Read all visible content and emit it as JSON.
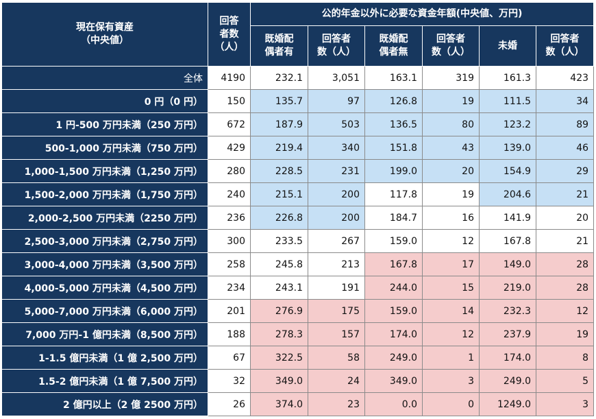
{
  "header": {
    "asset_label": "現在保有資産\n（中央値）",
    "count_label": "回答\n者数\n（人）",
    "group_label": "公的年金以外に必要な資金年額(中央値、万円)",
    "columns": [
      "既婚配\n偶者有",
      "回答者\n数（人）",
      "既婚配\n偶者無",
      "回答者\n数（人）",
      "未婚",
      "回答者\n数（人）"
    ]
  },
  "table": {
    "rows": [
      {
        "label": "全体",
        "count": "4190",
        "values": [
          "232.1",
          "3,051",
          "163.1",
          "319",
          "161.3",
          "423"
        ],
        "shading": [
          "#ffffff",
          "#ffffff",
          "#ffffff",
          "#ffffff",
          "#ffffff",
          "#ffffff"
        ]
      },
      {
        "label": "0 円（0 円）",
        "count": "150",
        "values": [
          "135.7",
          "97",
          "126.8",
          "19",
          "111.5",
          "34"
        ],
        "shading": [
          "#c6e0f5",
          "#c6e0f5",
          "#c6e0f5",
          "#c6e0f5",
          "#c6e0f5",
          "#c6e0f5"
        ]
      },
      {
        "label": "1 円-500 万円未満（250 万円）",
        "count": "672",
        "values": [
          "187.9",
          "503",
          "136.5",
          "80",
          "123.2",
          "89"
        ],
        "shading": [
          "#c6e0f5",
          "#c6e0f5",
          "#c6e0f5",
          "#c6e0f5",
          "#c6e0f5",
          "#c6e0f5"
        ]
      },
      {
        "label": "500-1,000 万円未満（750 万円）",
        "count": "429",
        "values": [
          "219.4",
          "340",
          "151.8",
          "43",
          "139.0",
          "46"
        ],
        "shading": [
          "#c6e0f5",
          "#c6e0f5",
          "#c6e0f5",
          "#c6e0f5",
          "#c6e0f5",
          "#c6e0f5"
        ]
      },
      {
        "label": "1,000-1,500 万円未満（1,250 万円）",
        "count": "280",
        "values": [
          "228.5",
          "231",
          "199.0",
          "20",
          "154.9",
          "29"
        ],
        "shading": [
          "#c6e0f5",
          "#c6e0f5",
          "#c6e0f5",
          "#c6e0f5",
          "#c6e0f5",
          "#c6e0f5"
        ]
      },
      {
        "label": "1,500-2,000 万円未満（1,750 万円）",
        "count": "240",
        "values": [
          "215.1",
          "200",
          "117.8",
          "19",
          "204.6",
          "21"
        ],
        "shading": [
          "#c6e0f5",
          "#c6e0f5",
          "#ffffff",
          "#ffffff",
          "#c6e0f5",
          "#c6e0f5"
        ]
      },
      {
        "label": "2,000-2,500 万円未満（2250 万円）",
        "count": "236",
        "values": [
          "226.8",
          "200",
          "184.7",
          "16",
          "141.9",
          "20"
        ],
        "shading": [
          "#c6e0f5",
          "#c6e0f5",
          "#ffffff",
          "#ffffff",
          "#ffffff",
          "#ffffff"
        ]
      },
      {
        "label": "2,500-3,000 万円未満（2,750 万円）",
        "count": "300",
        "values": [
          "233.5",
          "267",
          "159.0",
          "12",
          "167.8",
          "21"
        ],
        "shading": [
          "#ffffff",
          "#ffffff",
          "#ffffff",
          "#ffffff",
          "#ffffff",
          "#ffffff"
        ]
      },
      {
        "label": "3,000-4,000 万円未満（3,500 万円）",
        "count": "258",
        "values": [
          "245.8",
          "213",
          "167.8",
          "17",
          "149.0",
          "28"
        ],
        "shading": [
          "#ffffff",
          "#ffffff",
          "#f5cccc",
          "#f5cccc",
          "#f5cccc",
          "#f5cccc"
        ]
      },
      {
        "label": "4,000-5,000 万円未満（4,500 万円）",
        "count": "234",
        "values": [
          "243.1",
          "191",
          "244.0",
          "15",
          "219.0",
          "28"
        ],
        "shading": [
          "#ffffff",
          "#ffffff",
          "#f5cccc",
          "#f5cccc",
          "#f5cccc",
          "#f5cccc"
        ]
      },
      {
        "label": "5,000-7,000 万円未満（6,000 万円）",
        "count": "201",
        "values": [
          "276.9",
          "175",
          "159.0",
          "14",
          "232.3",
          "12"
        ],
        "shading": [
          "#f5cccc",
          "#f5cccc",
          "#f5cccc",
          "#f5cccc",
          "#f5cccc",
          "#f5cccc"
        ]
      },
      {
        "label": "7,000 万円-1 億円未満（8,500 万円）",
        "count": "188",
        "values": [
          "278.3",
          "157",
          "174.0",
          "12",
          "237.9",
          "19"
        ],
        "shading": [
          "#f5cccc",
          "#f5cccc",
          "#f5cccc",
          "#f5cccc",
          "#f5cccc",
          "#f5cccc"
        ]
      },
      {
        "label": "1-1.5 億円未満（1 億 2,500 万円）",
        "count": "67",
        "values": [
          "322.5",
          "58",
          "249.0",
          "1",
          "174.0",
          "8"
        ],
        "shading": [
          "#f5cccc",
          "#f5cccc",
          "#f5cccc",
          "#f5cccc",
          "#f5cccc",
          "#f5cccc"
        ]
      },
      {
        "label": "1.5-2 億円未満（1 億 7,500 万円）",
        "count": "32",
        "values": [
          "349.0",
          "24",
          "349.0",
          "3",
          "249.0",
          "5"
        ],
        "shading": [
          "#f5cccc",
          "#f5cccc",
          "#f5cccc",
          "#f5cccc",
          "#f5cccc",
          "#f5cccc"
        ]
      },
      {
        "label": "2 億円以上（2 億 2500 万円）",
        "count": "26",
        "values": [
          "374.0",
          "23",
          "0.0",
          "0",
          "1249.0",
          "3"
        ],
        "shading": [
          "#f5cccc",
          "#f5cccc",
          "#f5cccc",
          "#f5cccc",
          "#f5cccc",
          "#f5cccc"
        ]
      }
    ]
  }
}
